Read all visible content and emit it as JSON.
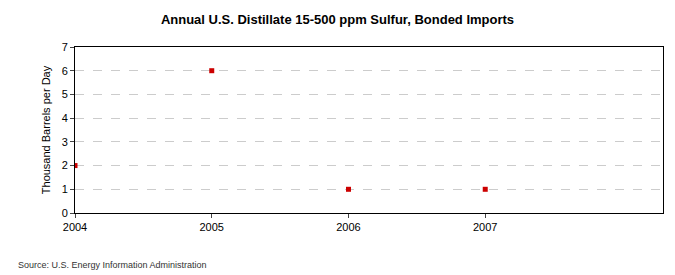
{
  "chart_data": {
    "type": "scatter",
    "title": "Annual U.S. Distillate 15-500 ppm Sulfur, Bonded Imports",
    "y_label": "Thousand Barrels per Day",
    "source": "Source: U.S. Energy Information Administration",
    "x": [
      2004,
      2005,
      2006,
      2007
    ],
    "values": [
      2,
      6,
      1,
      1
    ],
    "color": "#cc0000",
    "marker": "square",
    "xlim": [
      2004,
      2008.3
    ],
    "xticks": [
      2004,
      2005,
      2006,
      2007
    ],
    "ylim": [
      0,
      7
    ],
    "yticks": [
      0,
      1,
      2,
      3,
      4,
      5,
      6,
      7
    ],
    "grid": true
  }
}
